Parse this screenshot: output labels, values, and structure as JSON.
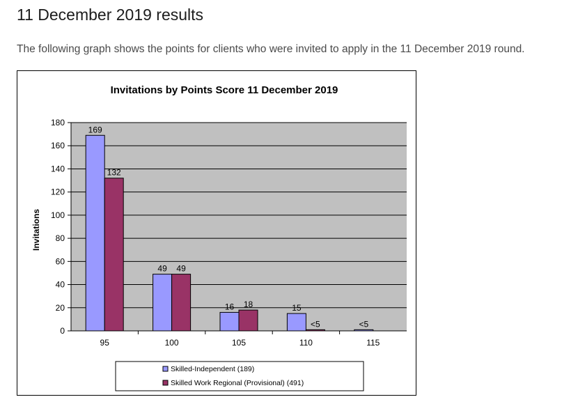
{
  "page": {
    "heading": "11 December 2019 results",
    "intro": "The following graph shows the points for clients who were invited to apply in the 11 December 2019 round."
  },
  "chart_data": {
    "type": "bar",
    "title": "Invitations by Points Score 11 December 2019",
    "xlabel": "",
    "ylabel": "Invitations",
    "ylim": [
      0,
      180
    ],
    "yticks": [
      0,
      20,
      40,
      60,
      80,
      100,
      120,
      140,
      160,
      180
    ],
    "categories": [
      "95",
      "100",
      "105",
      "110",
      "115"
    ],
    "grid": true,
    "legend_position": "bottom",
    "plot_background": "#c0c0c0",
    "series": [
      {
        "name": "Skilled-Independent (189)",
        "color": "#9999ff",
        "values": [
          169,
          49,
          16,
          15,
          1
        ],
        "labels": [
          "169",
          "49",
          "16",
          "15",
          "<5"
        ]
      },
      {
        "name": "Skilled Work Regional (Provisional) (491)",
        "color": "#993366",
        "values": [
          132,
          49,
          18,
          1,
          null
        ],
        "labels": [
          "132",
          "49",
          "18",
          "<5",
          ""
        ]
      }
    ]
  }
}
